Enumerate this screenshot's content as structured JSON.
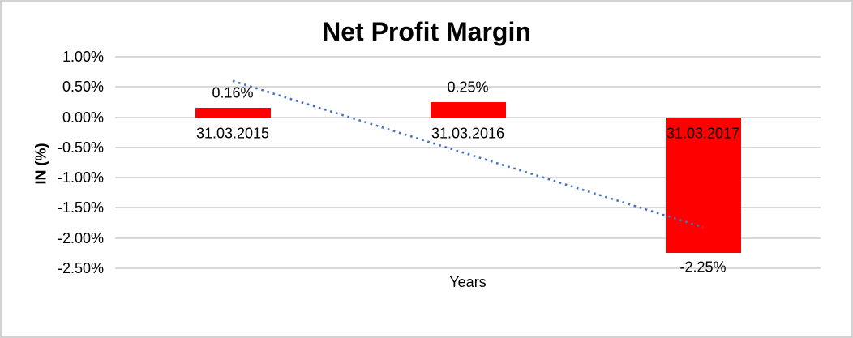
{
  "frame": {
    "background_color": "#FFFFFF",
    "border_color": "#D3D3D3"
  },
  "chart_data": {
    "type": "bar",
    "title": "Net Profit Margin",
    "xlabel": "Years",
    "ylabel": "IN (%)",
    "categories": [
      "31.03.2015",
      "31.03.2016",
      "31.03.2017"
    ],
    "values": [
      0.16,
      0.25,
      -2.25
    ],
    "data_labels": [
      "0.16%",
      "0.25%",
      "-2.25%"
    ],
    "y_ticks": [
      {
        "label": "1.00%",
        "value": 1.0
      },
      {
        "label": "0.50%",
        "value": 0.5
      },
      {
        "label": "0.00%",
        "value": 0.0
      },
      {
        "label": "-0.50%",
        "value": -0.5
      },
      {
        "label": "-1.00%",
        "value": -1.0
      },
      {
        "label": "-1.50%",
        "value": -1.5
      },
      {
        "label": "-2.00%",
        "value": -2.0
      },
      {
        "label": "-2.50%",
        "value": -2.5
      }
    ],
    "ylim": [
      -2.5,
      1.0
    ],
    "grid": true,
    "legend": "none",
    "bar_color": "#FF0000",
    "gridline_color": "#D9D9D9",
    "text_color": "#000000",
    "trendline": {
      "style": "dotted",
      "color": "#4472C4",
      "start": {
        "category_index": 0,
        "value": 0.6
      },
      "end": {
        "category_index": 2,
        "value": -1.82
      }
    }
  }
}
